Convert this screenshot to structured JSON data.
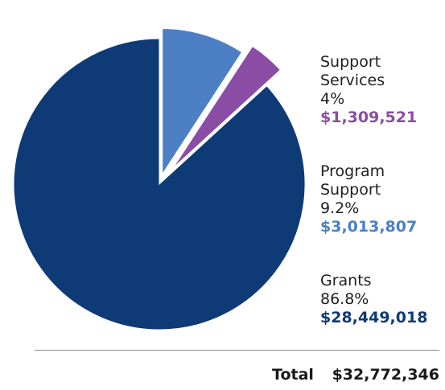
{
  "chart_data": {
    "type": "pie",
    "slices": [
      {
        "name": "Program Support",
        "percent": 9.2,
        "amount": "$3,013,807",
        "color": "#4d7fc4"
      },
      {
        "name": "Support Services",
        "percent": 4,
        "amount": "$1,309,521",
        "color": "#8a4ca4"
      },
      {
        "name": "Grants",
        "percent": 86.8,
        "amount": "$28,449,018",
        "color": "#0e3a75"
      }
    ],
    "legend": [
      {
        "label": "Support\nServices",
        "percent_label": "4%",
        "amount": "$1,309,521",
        "color": "#8a4ca4"
      },
      {
        "label": "Program\nSupport",
        "percent_label": "9.2%",
        "amount": "$3,013,807",
        "color": "#4d7fc4"
      },
      {
        "label": "Grants",
        "percent_label": "86.8%",
        "amount": "$28,449,018",
        "color": "#0e3a75"
      }
    ],
    "total": {
      "label": "Total",
      "amount": "$32,772,346"
    }
  }
}
